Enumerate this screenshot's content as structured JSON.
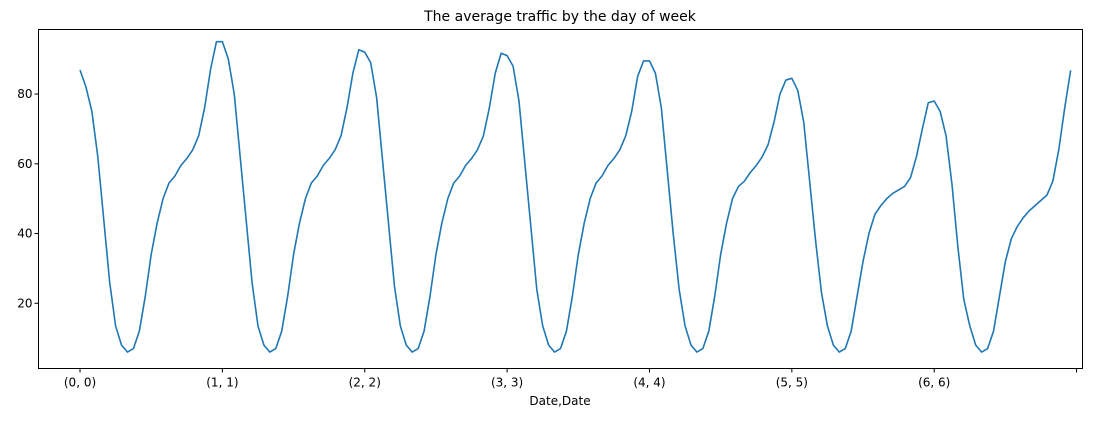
{
  "chart_data": {
    "type": "line",
    "title": "The average traffic by the day of week",
    "xlabel": "Date,Date",
    "ylabel": "",
    "x_tick_labels": [
      "(0, 0)",
      "(1, 1)",
      "(2, 2)",
      "(3, 3)",
      "(4, 4)",
      "(5, 5)",
      "(6, 6)"
    ],
    "y_ticks": [
      20,
      40,
      60,
      80
    ],
    "xlim": [
      -7,
      169
    ],
    "ylim": [
      1.3,
      98.5
    ],
    "grid": false,
    "legend": "none",
    "series_color": "#1f77b4",
    "series": [
      {
        "values": [
          86.9,
          82,
          75,
          62,
          44,
          26,
          13.5,
          8,
          6,
          7,
          12,
          22,
          34,
          43,
          50,
          54.5,
          56.5,
          59.5,
          61.5,
          64,
          68,
          76,
          87,
          95,
          95,
          90,
          80,
          62,
          44,
          26,
          13.5,
          8,
          6,
          7,
          12,
          22,
          34,
          43,
          50,
          54.5,
          56.5,
          59.5,
          61.5,
          64,
          68,
          76,
          86,
          92.7,
          92,
          89,
          79,
          61,
          43,
          25,
          13.5,
          8,
          6,
          7,
          12,
          22,
          34,
          43,
          50,
          54.5,
          56.5,
          59.5,
          61.5,
          64,
          68,
          76,
          86,
          91.7,
          91,
          88,
          78,
          60,
          42,
          24,
          13.5,
          8,
          6,
          7,
          12,
          22,
          34,
          43,
          50,
          54.5,
          56.5,
          59.5,
          61.5,
          64,
          68,
          75,
          85,
          89.5,
          89.5,
          86,
          76,
          58,
          40,
          24,
          13.5,
          8,
          6,
          7,
          12,
          22,
          34,
          43,
          50,
          53.5,
          55,
          57.5,
          59.5,
          62,
          65.5,
          72,
          80,
          84,
          84.5,
          81,
          72,
          55,
          38,
          23,
          13.5,
          8,
          6,
          7,
          12,
          22,
          32,
          40,
          45.5,
          48,
          50,
          51.5,
          52.5,
          53.5,
          56,
          62,
          70,
          77.5,
          78,
          75,
          68,
          54,
          36,
          21,
          13.5,
          8,
          6,
          7,
          12,
          22,
          32,
          38.5,
          42,
          44.5,
          46.5,
          48,
          49.5,
          51,
          55,
          64,
          76,
          86.8
        ]
      }
    ]
  }
}
